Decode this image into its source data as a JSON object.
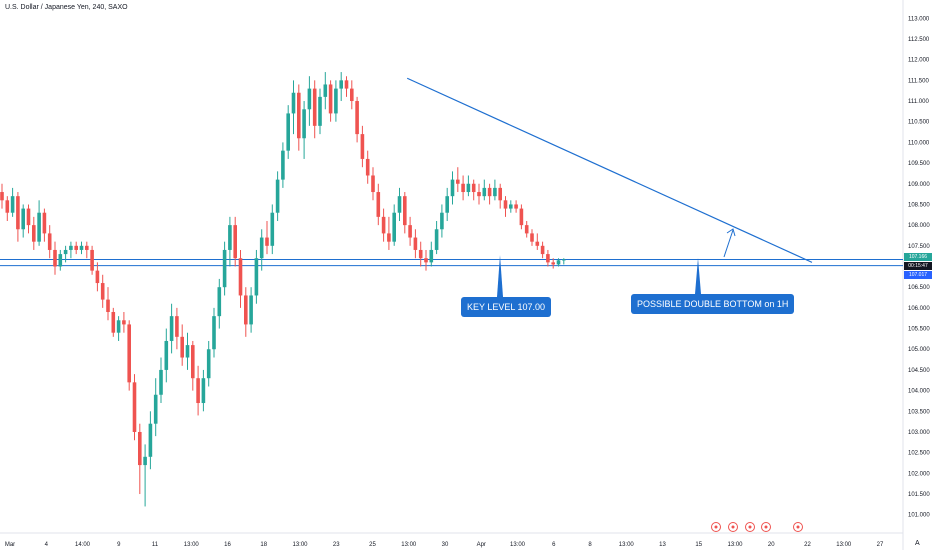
{
  "chart_title": "U.S. Dollar / Japanese Yen, 240, SAXO",
  "chart_data": {
    "type": "candlestick",
    "symbol": "U.S. Dollar / Japanese Yen, 240, SAXO",
    "y_ticks": [
      "113.000",
      "112.500",
      "112.000",
      "111.500",
      "111.000",
      "110.500",
      "110.000",
      "109.500",
      "109.000",
      "108.500",
      "108.000",
      "107.500",
      "107.000",
      "106.500",
      "106.000",
      "105.500",
      "105.000",
      "104.500",
      "104.000",
      "103.500",
      "103.000",
      "102.500",
      "102.000",
      "101.500",
      "101.000"
    ],
    "ylim": [
      100.8,
      113.2
    ],
    "x_ticks": [
      "Mar",
      "4",
      "14:00",
      "9",
      "11",
      "13:00",
      "16",
      "18",
      "13:00",
      "23",
      "25",
      "13:00",
      "30",
      "Apr",
      "13:00",
      "6",
      "8",
      "13:00",
      "13",
      "15",
      "13:00",
      "20",
      "22",
      "13:00",
      "27"
    ],
    "candles": [
      {
        "o": 108.8,
        "h": 109.0,
        "l": 108.4,
        "c": 108.6
      },
      {
        "o": 108.6,
        "h": 108.7,
        "l": 108.1,
        "c": 108.3
      },
      {
        "o": 108.3,
        "h": 108.9,
        "l": 108.2,
        "c": 108.7
      },
      {
        "o": 108.7,
        "h": 108.8,
        "l": 107.6,
        "c": 107.9
      },
      {
        "o": 107.9,
        "h": 108.5,
        "l": 107.7,
        "c": 108.4
      },
      {
        "o": 108.4,
        "h": 108.5,
        "l": 107.8,
        "c": 108.0
      },
      {
        "o": 108.0,
        "h": 108.2,
        "l": 107.4,
        "c": 107.6
      },
      {
        "o": 107.6,
        "h": 108.6,
        "l": 107.5,
        "c": 108.3
      },
      {
        "o": 108.3,
        "h": 108.4,
        "l": 107.6,
        "c": 107.8
      },
      {
        "o": 107.8,
        "h": 108.0,
        "l": 107.2,
        "c": 107.4
      },
      {
        "o": 107.4,
        "h": 107.6,
        "l": 106.8,
        "c": 107.0
      },
      {
        "o": 107.0,
        "h": 107.4,
        "l": 106.9,
        "c": 107.3
      },
      {
        "o": 107.3,
        "h": 107.5,
        "l": 107.1,
        "c": 107.4
      },
      {
        "o": 107.4,
        "h": 107.6,
        "l": 107.2,
        "c": 107.5
      },
      {
        "o": 107.5,
        "h": 107.6,
        "l": 107.3,
        "c": 107.4
      },
      {
        "o": 107.4,
        "h": 107.6,
        "l": 107.3,
        "c": 107.5
      },
      {
        "o": 107.5,
        "h": 107.6,
        "l": 107.2,
        "c": 107.4
      },
      {
        "o": 107.4,
        "h": 107.5,
        "l": 106.8,
        "c": 106.9
      },
      {
        "o": 106.9,
        "h": 107.1,
        "l": 106.4,
        "c": 106.6
      },
      {
        "o": 106.6,
        "h": 106.8,
        "l": 106.0,
        "c": 106.2
      },
      {
        "o": 106.2,
        "h": 106.5,
        "l": 105.7,
        "c": 105.9
      },
      {
        "o": 105.9,
        "h": 106.0,
        "l": 105.3,
        "c": 105.4
      },
      {
        "o": 105.4,
        "h": 105.8,
        "l": 105.2,
        "c": 105.7
      },
      {
        "o": 105.7,
        "h": 105.9,
        "l": 105.4,
        "c": 105.6
      },
      {
        "o": 105.6,
        "h": 105.7,
        "l": 104.0,
        "c": 104.2
      },
      {
        "o": 104.2,
        "h": 104.4,
        "l": 102.8,
        "c": 103.0
      },
      {
        "o": 103.0,
        "h": 103.2,
        "l": 101.5,
        "c": 102.2
      },
      {
        "o": 102.2,
        "h": 102.7,
        "l": 101.2,
        "c": 102.4
      },
      {
        "o": 102.4,
        "h": 103.5,
        "l": 102.1,
        "c": 103.2
      },
      {
        "o": 103.2,
        "h": 104.3,
        "l": 102.9,
        "c": 103.9
      },
      {
        "o": 103.9,
        "h": 104.8,
        "l": 103.7,
        "c": 104.5
      },
      {
        "o": 104.5,
        "h": 105.5,
        "l": 104.2,
        "c": 105.2
      },
      {
        "o": 105.2,
        "h": 106.1,
        "l": 104.9,
        "c": 105.8
      },
      {
        "o": 105.8,
        "h": 106.0,
        "l": 105.0,
        "c": 105.3
      },
      {
        "o": 105.3,
        "h": 105.6,
        "l": 104.6,
        "c": 104.8
      },
      {
        "o": 104.8,
        "h": 105.4,
        "l": 104.5,
        "c": 105.1
      },
      {
        "o": 105.1,
        "h": 105.2,
        "l": 104.0,
        "c": 104.3
      },
      {
        "o": 104.3,
        "h": 104.6,
        "l": 103.4,
        "c": 103.7
      },
      {
        "o": 103.7,
        "h": 104.5,
        "l": 103.5,
        "c": 104.3
      },
      {
        "o": 104.3,
        "h": 105.2,
        "l": 104.1,
        "c": 105.0
      },
      {
        "o": 105.0,
        "h": 106.0,
        "l": 104.8,
        "c": 105.8
      },
      {
        "o": 105.8,
        "h": 106.7,
        "l": 105.5,
        "c": 106.5
      },
      {
        "o": 106.5,
        "h": 107.6,
        "l": 106.3,
        "c": 107.4
      },
      {
        "o": 107.4,
        "h": 108.2,
        "l": 107.0,
        "c": 108.0
      },
      {
        "o": 108.0,
        "h": 108.2,
        "l": 107.0,
        "c": 107.2
      },
      {
        "o": 107.2,
        "h": 107.4,
        "l": 106.0,
        "c": 106.3
      },
      {
        "o": 106.3,
        "h": 106.5,
        "l": 105.3,
        "c": 105.6
      },
      {
        "o": 105.6,
        "h": 106.5,
        "l": 105.4,
        "c": 106.3
      },
      {
        "o": 106.3,
        "h": 107.4,
        "l": 106.1,
        "c": 107.2
      },
      {
        "o": 107.2,
        "h": 107.9,
        "l": 106.9,
        "c": 107.7
      },
      {
        "o": 107.7,
        "h": 108.1,
        "l": 107.3,
        "c": 107.5
      },
      {
        "o": 107.5,
        "h": 108.5,
        "l": 107.3,
        "c": 108.3
      },
      {
        "o": 108.3,
        "h": 109.3,
        "l": 108.1,
        "c": 109.1
      },
      {
        "o": 109.1,
        "h": 110.0,
        "l": 108.9,
        "c": 109.8
      },
      {
        "o": 109.8,
        "h": 110.9,
        "l": 109.6,
        "c": 110.7
      },
      {
        "o": 110.7,
        "h": 111.5,
        "l": 110.2,
        "c": 111.2
      },
      {
        "o": 111.2,
        "h": 111.4,
        "l": 109.8,
        "c": 110.1
      },
      {
        "o": 110.1,
        "h": 111.0,
        "l": 109.6,
        "c": 110.8
      },
      {
        "o": 110.8,
        "h": 111.6,
        "l": 110.4,
        "c": 111.3
      },
      {
        "o": 111.3,
        "h": 111.5,
        "l": 110.1,
        "c": 110.4
      },
      {
        "o": 110.4,
        "h": 111.3,
        "l": 110.2,
        "c": 111.1
      },
      {
        "o": 111.1,
        "h": 111.7,
        "l": 110.8,
        "c": 111.4
      },
      {
        "o": 111.4,
        "h": 111.5,
        "l": 110.5,
        "c": 110.7
      },
      {
        "o": 110.7,
        "h": 111.5,
        "l": 110.5,
        "c": 111.3
      },
      {
        "o": 111.3,
        "h": 111.7,
        "l": 111.0,
        "c": 111.5
      },
      {
        "o": 111.5,
        "h": 111.6,
        "l": 111.1,
        "c": 111.3
      },
      {
        "o": 111.3,
        "h": 111.5,
        "l": 110.8,
        "c": 111.0
      },
      {
        "o": 111.0,
        "h": 111.1,
        "l": 110.0,
        "c": 110.2
      },
      {
        "o": 110.2,
        "h": 110.4,
        "l": 109.4,
        "c": 109.6
      },
      {
        "o": 109.6,
        "h": 109.8,
        "l": 109.0,
        "c": 109.2
      },
      {
        "o": 109.2,
        "h": 109.4,
        "l": 108.6,
        "c": 108.8
      },
      {
        "o": 108.8,
        "h": 109.0,
        "l": 108.0,
        "c": 108.2
      },
      {
        "o": 108.2,
        "h": 108.4,
        "l": 107.6,
        "c": 107.8
      },
      {
        "o": 107.8,
        "h": 108.2,
        "l": 107.4,
        "c": 107.6
      },
      {
        "o": 107.6,
        "h": 108.5,
        "l": 107.5,
        "c": 108.3
      },
      {
        "o": 108.3,
        "h": 108.9,
        "l": 108.1,
        "c": 108.7
      },
      {
        "o": 108.7,
        "h": 108.8,
        "l": 107.8,
        "c": 108.0
      },
      {
        "o": 108.0,
        "h": 108.2,
        "l": 107.5,
        "c": 107.7
      },
      {
        "o": 107.7,
        "h": 107.9,
        "l": 107.2,
        "c": 107.4
      },
      {
        "o": 107.4,
        "h": 107.6,
        "l": 107.0,
        "c": 107.2
      },
      {
        "o": 107.2,
        "h": 107.4,
        "l": 106.9,
        "c": 107.1
      },
      {
        "o": 107.1,
        "h": 107.6,
        "l": 107.0,
        "c": 107.4
      },
      {
        "o": 107.4,
        "h": 108.1,
        "l": 107.3,
        "c": 107.9
      },
      {
        "o": 107.9,
        "h": 108.5,
        "l": 107.7,
        "c": 108.3
      },
      {
        "o": 108.3,
        "h": 108.9,
        "l": 108.1,
        "c": 108.7
      },
      {
        "o": 108.7,
        "h": 109.3,
        "l": 108.5,
        "c": 109.1
      },
      {
        "o": 109.1,
        "h": 109.4,
        "l": 108.8,
        "c": 109.0
      },
      {
        "o": 109.0,
        "h": 109.2,
        "l": 108.6,
        "c": 108.8
      },
      {
        "o": 108.8,
        "h": 109.2,
        "l": 108.7,
        "c": 109.0
      },
      {
        "o": 109.0,
        "h": 109.1,
        "l": 108.6,
        "c": 108.8
      },
      {
        "o": 108.8,
        "h": 109.0,
        "l": 108.5,
        "c": 108.7
      },
      {
        "o": 108.7,
        "h": 109.1,
        "l": 108.6,
        "c": 108.9
      },
      {
        "o": 108.9,
        "h": 109.0,
        "l": 108.5,
        "c": 108.7
      },
      {
        "o": 108.7,
        "h": 109.1,
        "l": 108.6,
        "c": 108.9
      },
      {
        "o": 108.9,
        "h": 109.0,
        "l": 108.4,
        "c": 108.6
      },
      {
        "o": 108.6,
        "h": 108.7,
        "l": 108.2,
        "c": 108.4
      },
      {
        "o": 108.4,
        "h": 108.6,
        "l": 108.3,
        "c": 108.5
      },
      {
        "o": 108.5,
        "h": 108.6,
        "l": 108.3,
        "c": 108.4
      },
      {
        "o": 108.4,
        "h": 108.5,
        "l": 107.9,
        "c": 108.0
      },
      {
        "o": 108.0,
        "h": 108.1,
        "l": 107.7,
        "c": 107.8
      },
      {
        "o": 107.8,
        "h": 107.9,
        "l": 107.5,
        "c": 107.6
      },
      {
        "o": 107.6,
        "h": 107.8,
        "l": 107.4,
        "c": 107.5
      },
      {
        "o": 107.5,
        "h": 107.6,
        "l": 107.2,
        "c": 107.3
      },
      {
        "o": 107.3,
        "h": 107.4,
        "l": 107.0,
        "c": 107.1
      },
      {
        "o": 107.1,
        "h": 107.2,
        "l": 106.95,
        "c": 107.05
      },
      {
        "o": 107.05,
        "h": 107.2,
        "l": 107.0,
        "c": 107.15
      },
      {
        "o": 107.15,
        "h": 107.2,
        "l": 107.05,
        "c": 107.17
      }
    ],
    "horizontal_levels": [
      107.17,
      107.02
    ],
    "trendline": {
      "from": {
        "candle": 64,
        "price": 111.55
      },
      "to": {
        "candle": 130,
        "price": 107.1
      }
    },
    "current_price_labels": [
      {
        "text": "107.166",
        "color": "#26a69a"
      },
      {
        "text": "00:15:47",
        "color": "#131722"
      },
      {
        "text": "107.017",
        "color": "#2962ff"
      }
    ],
    "annotations": [
      {
        "text": "KEY LEVEL 107.00"
      },
      {
        "text": "POSSIBLE DOUBLE BOTTOM on 1H"
      }
    ]
  },
  "colors": {
    "up": "#26a69a",
    "down": "#ef5350",
    "line": "#1e6fd0",
    "callout": "#1e6fd0"
  },
  "corner_label": "A"
}
